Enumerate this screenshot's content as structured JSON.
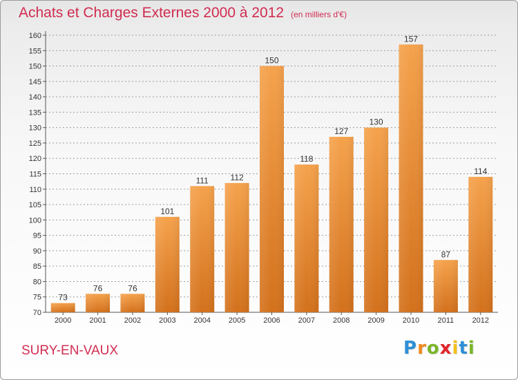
{
  "title": "Achats et Charges Externes 2000 à 2012",
  "unit": "(en milliers d'€)",
  "location": "SURY-EN-VAUX",
  "brand": {
    "letters": [
      "P",
      "r",
      "o",
      "x",
      "i",
      "t",
      "i"
    ],
    "colors": [
      "#2e8fd6",
      "#f08a1c",
      "#7bb52b",
      "#e2252b",
      "#f2c01a",
      "#2e8fd6",
      "#7bb52b"
    ]
  },
  "colors": {
    "bar_top": "#f5a24c",
    "bar_bottom": "#d3711c",
    "title": "#d02c50",
    "axis": "#555555"
  },
  "chart_data": {
    "type": "bar",
    "categories": [
      "2000",
      "2001",
      "2002",
      "2003",
      "2004",
      "2005",
      "2006",
      "2007",
      "2008",
      "2009",
      "2010",
      "2011",
      "2012"
    ],
    "values": [
      73,
      76,
      76,
      101,
      111,
      112,
      150,
      118,
      127,
      130,
      157,
      87,
      114
    ],
    "data_labels": [
      "73",
      "76",
      "76",
      "101",
      "111",
      "112",
      "150",
      "118",
      "127",
      "130",
      "157",
      "87",
      "114"
    ],
    "ylim": [
      70,
      160
    ],
    "yticks": [
      "70",
      "75",
      "80",
      "85",
      "90",
      "95",
      "100",
      "105",
      "110",
      "115",
      "120",
      "125",
      "130",
      "135",
      "140",
      "145",
      "150",
      "155",
      "160"
    ],
    "grid": true,
    "xlabel": "",
    "ylabel": ""
  }
}
